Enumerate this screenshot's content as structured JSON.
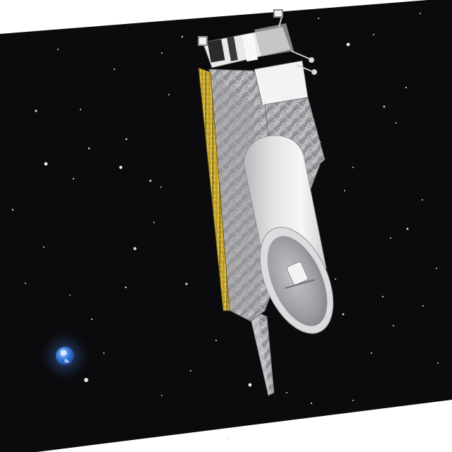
{
  "scene": {
    "subject": "spacecraft",
    "background": "starfield",
    "planet": "earth"
  },
  "colors": {
    "space": "#0b0b0d",
    "frame_white": "#ffffff",
    "solar_gold": "#c9a82a",
    "foil_silver": "#a8a8ab",
    "telescope_white": "#e6e6e8",
    "earth_blue": "#3a78d8",
    "earth_glow": "#6fa0e0"
  }
}
